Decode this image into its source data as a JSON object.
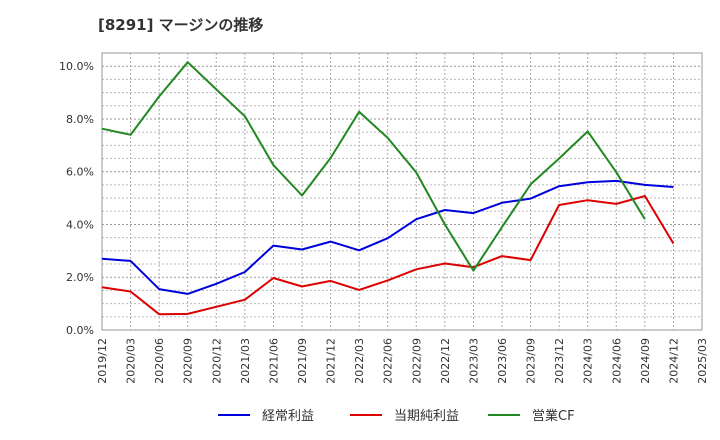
{
  "chart_data": {
    "type": "line",
    "title": "[8291]  マージンの推移",
    "x": [
      "2019/12",
      "2020/03",
      "2020/06",
      "2020/09",
      "2020/12",
      "2021/03",
      "2021/06",
      "2021/09",
      "2021/12",
      "2022/03",
      "2022/06",
      "2022/09",
      "2022/12",
      "2023/03",
      "2023/06",
      "2023/09",
      "2023/12",
      "2024/03",
      "2024/06",
      "2024/09",
      "2024/12",
      "2025/03"
    ],
    "ylim": [
      0,
      10.5
    ],
    "yticks": [
      "0.0%",
      "2.0%",
      "4.0%",
      "6.0%",
      "8.0%",
      "10.0%"
    ],
    "ytick_values": [
      0,
      2,
      4,
      6,
      8,
      10
    ],
    "grid": true,
    "legend_position": "bottom",
    "series": [
      {
        "name": "経常利益",
        "color": "#0000dd",
        "values": [
          2.7,
          2.62,
          1.55,
          1.37,
          1.75,
          2.2,
          3.2,
          3.05,
          3.35,
          3.02,
          3.48,
          4.2,
          4.55,
          4.43,
          4.82,
          4.98,
          5.45,
          5.6,
          5.65,
          5.5,
          5.42,
          null
        ]
      },
      {
        "name": "当期純利益",
        "color": "#dd0000",
        "values": [
          1.62,
          1.46,
          0.6,
          0.61,
          0.88,
          1.15,
          1.97,
          1.65,
          1.86,
          1.52,
          1.88,
          2.3,
          2.52,
          2.38,
          2.8,
          2.65,
          4.74,
          4.92,
          4.78,
          5.08,
          3.28,
          null
        ]
      },
      {
        "name": "営業CF",
        "color": "#228822",
        "values": [
          7.63,
          7.4,
          8.85,
          10.15,
          9.12,
          8.1,
          6.25,
          5.1,
          6.52,
          8.27,
          7.28,
          5.97,
          4.0,
          2.25,
          3.9,
          5.52,
          6.5,
          7.53,
          5.98,
          4.2,
          null,
          null
        ]
      }
    ]
  }
}
